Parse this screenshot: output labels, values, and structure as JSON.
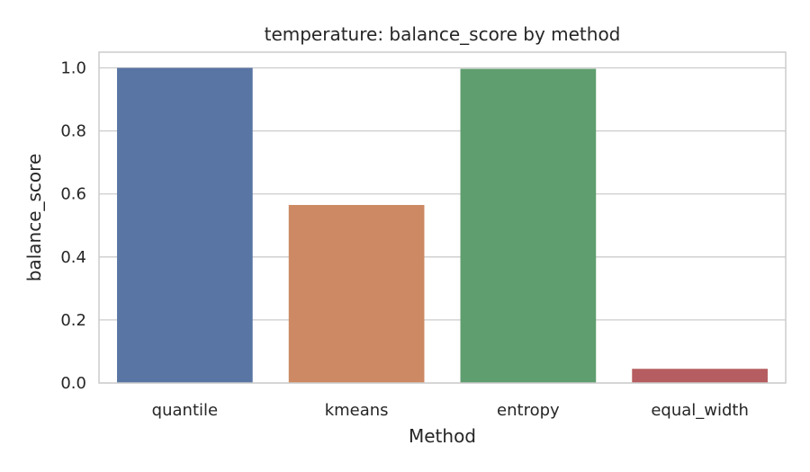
{
  "chart_data": {
    "type": "bar",
    "title": "temperature: balance_score by method",
    "xlabel": "Method",
    "ylabel": "balance_score",
    "categories": [
      "quantile",
      "kmeans",
      "entropy",
      "equal_width"
    ],
    "values": [
      1.0,
      0.565,
      0.997,
      0.045
    ],
    "colors": [
      "#5975a4",
      "#cc8963",
      "#5f9e6e",
      "#b55d60"
    ],
    "ylim": [
      0,
      1.05
    ],
    "yticks": [
      "0.0",
      "0.2",
      "0.4",
      "0.6",
      "0.8",
      "1.0"
    ],
    "grid": true,
    "legend": "none"
  }
}
